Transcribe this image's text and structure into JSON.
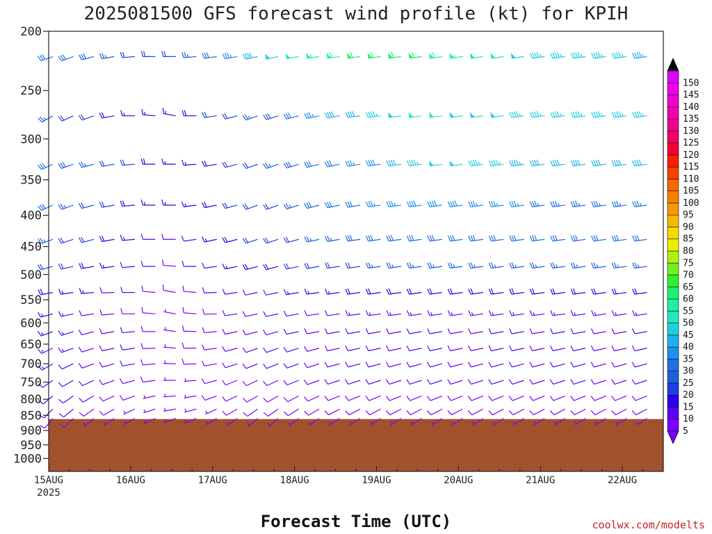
{
  "chart_data": {
    "type": "wind_barb_profile",
    "title": "2025081500 GFS forecast wind profile (kt) for KPIH",
    "xlabel": "Forecast Time (UTC)",
    "ylabel": "",
    "credit": "coolwx.com/modelts",
    "x_ticks": [
      {
        "label": "15AUG",
        "sublabel": "2025",
        "hours": 0
      },
      {
        "label": "16AUG",
        "sublabel": "",
        "hours": 24
      },
      {
        "label": "17AUG",
        "sublabel": "",
        "hours": 48
      },
      {
        "label": "18AUG",
        "sublabel": "",
        "hours": 72
      },
      {
        "label": "19AUG",
        "sublabel": "",
        "hours": 96
      },
      {
        "label": "20AUG",
        "sublabel": "",
        "hours": 120
      },
      {
        "label": "21AUG",
        "sublabel": "",
        "hours": 144
      },
      {
        "label": "22AUG",
        "sublabel": "",
        "hours": 168
      }
    ],
    "xlim_hours": [
      0,
      180
    ],
    "y_ticks": [
      "200",
      "250",
      "300",
      "350",
      "400",
      "450",
      "500",
      "550",
      "600",
      "650",
      "700",
      "750",
      "800",
      "850",
      "900",
      "950",
      "1000"
    ],
    "ylim_hpa": [
      200,
      1050
    ],
    "y_scale": "log-pressure",
    "ground_pressure_hpa": 862,
    "ground_color": "#a0522d",
    "colorbar": {
      "levels": [
        "5",
        "10",
        "15",
        "20",
        "25",
        "30",
        "35",
        "40",
        "45",
        "50",
        "55",
        "60",
        "65",
        "70",
        "75",
        "80",
        "85",
        "90",
        "95",
        "100",
        "105",
        "110",
        "115",
        "120",
        "125",
        "130",
        "135",
        "140",
        "145",
        "150"
      ],
      "colors": [
        "#7a00ff",
        "#5a00f5",
        "#2a00e8",
        "#1f3fe0",
        "#1f5fe0",
        "#2070e8",
        "#1f8ff0",
        "#20b0f0",
        "#20d0e0",
        "#20e8c0",
        "#20f0a0",
        "#20f070",
        "#30f030",
        "#70f020",
        "#b0f010",
        "#e8f000",
        "#f8d800",
        "#f8b800",
        "#f89800",
        "#f88000",
        "#f86800",
        "#f84000",
        "#f82000",
        "#f00030",
        "#f00060",
        "#f00090",
        "#f000b0",
        "#f000d0",
        "#f000e8",
        "#e000f8"
      ]
    },
    "levels_hpa": [
      220,
      275,
      330,
      385,
      438,
      485,
      535,
      580,
      620,
      660,
      700,
      745,
      790,
      830,
      860
    ],
    "time_step_hours": 6,
    "level_profiles": [
      {
        "p": 220,
        "speed_kt": [
          30,
          30,
          28,
          25,
          22,
          20,
          22,
          25,
          30,
          35,
          42,
          48,
          52,
          55,
          58,
          60,
          62,
          62,
          60,
          58,
          55,
          52,
          50,
          48,
          47,
          46,
          45,
          45,
          45,
          44
        ],
        "dir_deg": [
          250,
          250,
          255,
          260,
          265,
          270,
          270,
          265,
          262,
          260,
          258,
          258,
          260,
          262,
          262,
          262,
          262,
          262,
          262,
          262,
          262,
          262,
          262,
          262,
          262,
          262,
          262,
          262,
          262,
          262
        ]
      },
      {
        "p": 275,
        "speed_kt": [
          25,
          22,
          20,
          18,
          15,
          15,
          15,
          18,
          20,
          22,
          25,
          28,
          32,
          35,
          40,
          42,
          45,
          48,
          50,
          50,
          48,
          48,
          48,
          46,
          46,
          46,
          46,
          46,
          46,
          46
        ],
        "dir_deg": [
          240,
          245,
          250,
          260,
          270,
          275,
          280,
          270,
          262,
          255,
          250,
          252,
          255,
          258,
          260,
          262,
          262,
          262,
          262,
          262,
          262,
          262,
          262,
          262,
          262,
          262,
          262,
          262,
          262,
          262
        ]
      },
      {
        "p": 330,
        "speed_kt": [
          30,
          28,
          25,
          22,
          20,
          18,
          15,
          15,
          18,
          20,
          22,
          25,
          28,
          30,
          32,
          35,
          38,
          42,
          45,
          48,
          48,
          46,
          45,
          44,
          42,
          42,
          40,
          40,
          40,
          40
        ],
        "dir_deg": [
          245,
          250,
          255,
          260,
          265,
          270,
          270,
          265,
          260,
          255,
          250,
          250,
          252,
          255,
          258,
          260,
          262,
          262,
          262,
          262,
          262,
          262,
          262,
          262,
          262,
          262,
          262,
          262,
          262,
          262
        ]
      },
      {
        "p": 385,
        "speed_kt": [
          28,
          25,
          22,
          20,
          18,
          15,
          15,
          15,
          18,
          20,
          22,
          22,
          25,
          28,
          30,
          32,
          35,
          35,
          38,
          38,
          38,
          36,
          35,
          35,
          34,
          34,
          34,
          34,
          34,
          34
        ],
        "dir_deg": [
          245,
          250,
          255,
          260,
          265,
          270,
          270,
          262,
          258,
          255,
          250,
          250,
          252,
          255,
          258,
          260,
          262,
          262,
          262,
          262,
          262,
          262,
          262,
          262,
          262,
          262,
          262,
          262,
          262,
          262
        ]
      },
      {
        "p": 438,
        "speed_kt": [
          25,
          22,
          20,
          18,
          15,
          12,
          10,
          12,
          15,
          18,
          20,
          20,
          22,
          25,
          25,
          28,
          30,
          30,
          32,
          32,
          32,
          30,
          30,
          30,
          30,
          30,
          30,
          30,
          30,
          30
        ],
        "dir_deg": [
          250,
          252,
          255,
          260,
          265,
          270,
          270,
          262,
          258,
          255,
          252,
          252,
          255,
          258,
          260,
          262,
          262,
          262,
          262,
          262,
          262,
          262,
          262,
          262,
          262,
          262,
          262,
          262,
          262,
          262
        ]
      },
      {
        "p": 485,
        "speed_kt": [
          22,
          20,
          18,
          15,
          12,
          10,
          8,
          10,
          12,
          15,
          18,
          18,
          20,
          20,
          22,
          22,
          25,
          25,
          25,
          25,
          25,
          25,
          25,
          25,
          25,
          25,
          25,
          25,
          25,
          25
        ],
        "dir_deg": [
          255,
          258,
          260,
          262,
          265,
          270,
          275,
          270,
          262,
          258,
          255,
          255,
          258,
          260,
          262,
          262,
          262,
          262,
          262,
          262,
          262,
          262,
          262,
          262,
          262,
          262,
          262,
          262,
          262,
          262
        ]
      },
      {
        "p": 535,
        "speed_kt": [
          18,
          16,
          15,
          12,
          10,
          8,
          8,
          8,
          10,
          12,
          12,
          12,
          15,
          15,
          15,
          18,
          18,
          18,
          18,
          18,
          18,
          18,
          18,
          18,
          18,
          18,
          18,
          18,
          18,
          18
        ],
        "dir_deg": [
          260,
          262,
          265,
          268,
          270,
          275,
          280,
          275,
          268,
          262,
          258,
          258,
          260,
          262,
          262,
          262,
          262,
          262,
          262,
          262,
          262,
          262,
          262,
          262,
          262,
          262,
          262,
          262,
          262,
          262
        ]
      },
      {
        "p": 580,
        "speed_kt": [
          15,
          14,
          12,
          10,
          8,
          8,
          6,
          8,
          8,
          10,
          10,
          10,
          12,
          12,
          12,
          14,
          14,
          14,
          14,
          14,
          14,
          14,
          14,
          14,
          14,
          14,
          14,
          14,
          14,
          14
        ],
        "dir_deg": [
          255,
          258,
          262,
          265,
          270,
          275,
          280,
          275,
          268,
          262,
          258,
          258,
          260,
          262,
          262,
          262,
          262,
          262,
          262,
          262,
          262,
          262,
          262,
          262,
          262,
          262,
          262,
          262,
          262,
          262
        ]
      },
      {
        "p": 620,
        "speed_kt": [
          15,
          14,
          12,
          12,
          10,
          8,
          6,
          8,
          8,
          10,
          10,
          10,
          12,
          12,
          12,
          12,
          12,
          12,
          12,
          12,
          12,
          12,
          12,
          12,
          12,
          12,
          12,
          12,
          12,
          12
        ],
        "dir_deg": [
          250,
          252,
          255,
          260,
          265,
          270,
          278,
          272,
          265,
          258,
          255,
          255,
          258,
          260,
          260,
          260,
          260,
          260,
          260,
          260,
          260,
          260,
          260,
          260,
          260,
          260,
          260,
          260,
          260,
          260
        ]
      },
      {
        "p": 660,
        "speed_kt": [
          14,
          14,
          12,
          12,
          10,
          8,
          6,
          8,
          8,
          10,
          10,
          10,
          12,
          12,
          12,
          12,
          12,
          12,
          12,
          12,
          12,
          12,
          12,
          12,
          12,
          12,
          12,
          12,
          12,
          12
        ],
        "dir_deg": [
          245,
          250,
          252,
          258,
          262,
          268,
          275,
          270,
          262,
          255,
          250,
          250,
          252,
          255,
          258,
          258,
          258,
          258,
          258,
          258,
          258,
          258,
          258,
          258,
          258,
          258,
          258,
          258,
          258,
          258
        ]
      },
      {
        "p": 700,
        "speed_kt": [
          14,
          12,
          12,
          10,
          10,
          8,
          6,
          8,
          8,
          10,
          10,
          10,
          10,
          10,
          10,
          10,
          10,
          10,
          10,
          10,
          10,
          10,
          10,
          10,
          10,
          10,
          10,
          10,
          10,
          10
        ],
        "dir_deg": [
          240,
          245,
          250,
          255,
          260,
          265,
          272,
          268,
          260,
          252,
          248,
          248,
          250,
          252,
          255,
          255,
          255,
          255,
          255,
          255,
          255,
          255,
          255,
          255,
          255,
          255,
          255,
          255,
          255,
          255
        ]
      },
      {
        "p": 745,
        "speed_kt": [
          12,
          12,
          10,
          10,
          8,
          8,
          6,
          6,
          8,
          8,
          8,
          8,
          10,
          10,
          10,
          10,
          10,
          10,
          10,
          10,
          10,
          10,
          10,
          10,
          10,
          10,
          10,
          10,
          10,
          10
        ],
        "dir_deg": [
          235,
          240,
          245,
          250,
          255,
          262,
          270,
          265,
          255,
          248,
          245,
          245,
          248,
          250,
          252,
          252,
          252,
          252,
          252,
          252,
          252,
          252,
          252,
          252,
          252,
          252,
          252,
          252,
          252,
          252
        ]
      },
      {
        "p": 790,
        "speed_kt": [
          12,
          10,
          10,
          8,
          8,
          6,
          6,
          6,
          8,
          8,
          8,
          8,
          8,
          8,
          8,
          8,
          8,
          8,
          8,
          8,
          8,
          8,
          8,
          8,
          8,
          8,
          8,
          8,
          8,
          8
        ],
        "dir_deg": [
          230,
          235,
          240,
          245,
          250,
          258,
          265,
          260,
          250,
          245,
          240,
          240,
          242,
          245,
          248,
          248,
          248,
          248,
          248,
          248,
          248,
          248,
          248,
          248,
          248,
          248,
          248,
          248,
          248,
          248
        ]
      },
      {
        "p": 830,
        "speed_kt": [
          10,
          10,
          8,
          8,
          6,
          6,
          5,
          6,
          6,
          8,
          8,
          8,
          8,
          8,
          8,
          8,
          8,
          8,
          8,
          8,
          8,
          8,
          8,
          8,
          8,
          8,
          8,
          8,
          8,
          8
        ],
        "dir_deg": [
          225,
          230,
          235,
          240,
          245,
          252,
          260,
          255,
          245,
          240,
          235,
          235,
          238,
          240,
          242,
          242,
          242,
          242,
          242,
          242,
          242,
          242,
          242,
          242,
          242,
          242,
          242,
          242,
          242,
          242
        ]
      },
      {
        "p": 860,
        "speed_kt": [
          8,
          8,
          6,
          6,
          5,
          5,
          5,
          5,
          6,
          6,
          6,
          6,
          6,
          6,
          6,
          6,
          6,
          6,
          6,
          6,
          6,
          6,
          6,
          6,
          6,
          6,
          6,
          6,
          6,
          6
        ],
        "dir_deg": [
          220,
          225,
          230,
          235,
          240,
          245,
          250,
          248,
          240,
          235,
          230,
          230,
          232,
          235,
          238,
          238,
          238,
          238,
          238,
          238,
          238,
          238,
          238,
          238,
          238,
          238,
          238,
          238,
          238,
          238
        ]
      }
    ]
  }
}
